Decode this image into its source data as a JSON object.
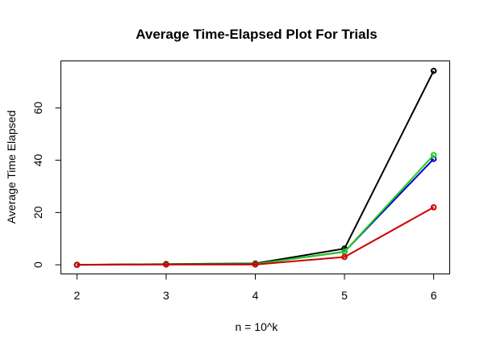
{
  "chart_data": {
    "type": "line",
    "title": "Average Time-Elapsed Plot For Trials",
    "xlabel": "n = 10^k",
    "ylabel": "Average Time Elapsed",
    "x": [
      2,
      3,
      4,
      5,
      6
    ],
    "xticks": [
      "2",
      "3",
      "4",
      "5",
      "6"
    ],
    "yticks": [
      "0",
      "20",
      "40",
      "60"
    ],
    "xlim": [
      1.82,
      6.18
    ],
    "ylim": [
      -3.5,
      78
    ],
    "grid": false,
    "legend": "none",
    "series": [
      {
        "color": "#000000",
        "values": [
          0.0,
          0.3,
          0.5,
          6.2,
          74.2
        ]
      },
      {
        "color": "#0000cc",
        "values": [
          0.0,
          0.2,
          0.3,
          5.0,
          40.5
        ]
      },
      {
        "color": "#22cc22",
        "values": [
          0.0,
          0.2,
          0.3,
          5.0,
          42.0
        ]
      },
      {
        "color": "#cc0000",
        "values": [
          0.0,
          0.1,
          0.1,
          3.0,
          22.0
        ]
      }
    ]
  }
}
